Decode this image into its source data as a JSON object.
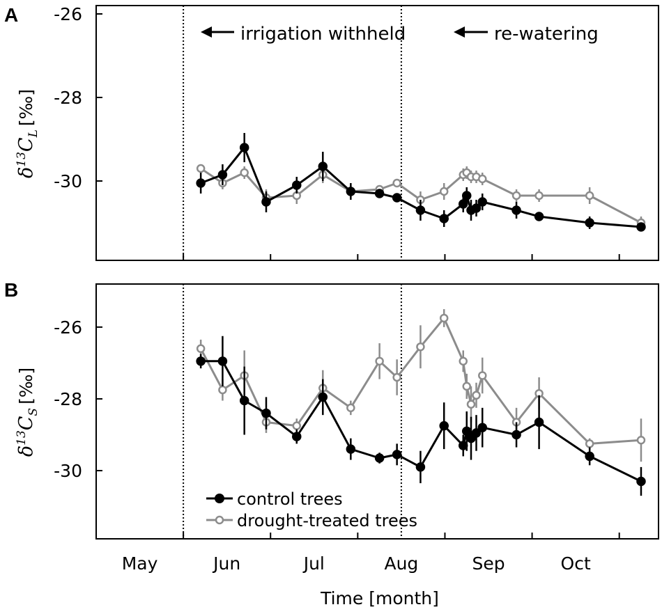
{
  "chart_data": [
    {
      "panel": "A",
      "type": "line",
      "ylabel_symbol": "δ",
      "ylabel_iso": "13",
      "ylabel_var": "C",
      "ylabel_sub": "L",
      "ylabel_unit": "[‰]",
      "ylim": [
        -31.9,
        -25.8
      ],
      "yticks": [
        -26,
        -28,
        -30
      ],
      "ytick_labels": [
        "-26",
        "-28",
        "-30"
      ],
      "annotations": [
        {
          "text": "irrigation withheld",
          "x": 5.0
        },
        {
          "text": "re-watering",
          "x": 7.5
        }
      ],
      "series": [
        {
          "name": "control trees",
          "color": "#000000",
          "marker": "filled",
          "x": [
            5.2,
            5.45,
            5.7,
            5.95,
            6.3,
            6.6,
            6.92,
            7.25,
            7.45,
            7.72,
            7.99,
            8.21,
            8.25,
            8.3,
            8.36,
            8.43,
            8.82,
            9.08,
            9.66,
            10.25
          ],
          "y": [
            -30.05,
            -29.85,
            -29.2,
            -30.5,
            -30.1,
            -29.65,
            -30.25,
            -30.3,
            -30.4,
            -30.7,
            -30.9,
            -30.55,
            -30.35,
            -30.7,
            -30.65,
            -30.5,
            -30.7,
            -30.85,
            -31.0,
            -31.1
          ],
          "err": [
            0.25,
            0.25,
            0.35,
            0.25,
            0.2,
            0.35,
            0.2,
            0.1,
            0.1,
            0.25,
            0.2,
            0.2,
            0.2,
            0.25,
            0.2,
            0.2,
            0.2,
            0.1,
            0.15,
            0.1
          ]
        },
        {
          "name": "drought-treated trees",
          "color": "#8c8c8c",
          "marker": "open",
          "x": [
            5.2,
            5.45,
            5.7,
            5.95,
            6.3,
            6.6,
            6.92,
            7.25,
            7.45,
            7.72,
            7.99,
            8.21,
            8.25,
            8.3,
            8.36,
            8.43,
            8.82,
            9.08,
            9.66,
            10.25
          ],
          "y": [
            -29.7,
            -30.05,
            -29.8,
            -30.4,
            -30.35,
            -29.85,
            -30.25,
            -30.2,
            -30.05,
            -30.45,
            -30.25,
            -29.85,
            -29.8,
            -29.9,
            -29.9,
            -29.95,
            -30.35,
            -30.35,
            -30.35,
            -31.0
          ],
          "err": [
            0.1,
            0.15,
            0.15,
            0.2,
            0.2,
            0.2,
            0.15,
            0.1,
            0.1,
            0.2,
            0.2,
            0.15,
            0.15,
            0.15,
            0.15,
            0.15,
            0.15,
            0.15,
            0.2,
            0.15
          ]
        }
      ]
    },
    {
      "panel": "B",
      "type": "line",
      "ylabel_symbol": "δ",
      "ylabel_iso": "13",
      "ylabel_var": "C",
      "ylabel_sub": "S",
      "ylabel_unit": "[‰]",
      "ylim": [
        -31.9,
        -24.8
      ],
      "yticks": [
        -26,
        -28,
        -30
      ],
      "ytick_labels": [
        "-26",
        "-28",
        "-30"
      ],
      "series": [
        {
          "name": "control trees",
          "color": "#000000",
          "marker": "filled",
          "x": [
            5.2,
            5.45,
            5.7,
            5.95,
            6.3,
            6.6,
            6.92,
            7.25,
            7.45,
            7.72,
            7.99,
            8.21,
            8.25,
            8.3,
            8.36,
            8.43,
            8.82,
            9.08,
            9.66,
            10.25
          ],
          "y": [
            -26.95,
            -26.95,
            -28.05,
            -28.4,
            -29.05,
            -27.95,
            -29.4,
            -29.65,
            -29.55,
            -29.9,
            -28.75,
            -29.3,
            -28.9,
            -29.1,
            -28.95,
            -28.8,
            -29.0,
            -28.65,
            -29.6,
            -30.3
          ],
          "err": [
            0.2,
            0.7,
            0.95,
            0.45,
            0.2,
            0.5,
            0.3,
            0.15,
            0.3,
            0.45,
            0.65,
            0.3,
            0.55,
            0.6,
            0.5,
            0.55,
            0.35,
            0.75,
            0.25,
            0.4
          ]
        },
        {
          "name": "drought-treated trees",
          "color": "#8c8c8c",
          "marker": "open",
          "x": [
            5.2,
            5.45,
            5.7,
            5.95,
            6.3,
            6.6,
            6.92,
            7.25,
            7.45,
            7.72,
            7.99,
            8.21,
            8.25,
            8.3,
            8.36,
            8.43,
            8.82,
            9.08,
            9.66,
            10.25
          ],
          "y": [
            -26.6,
            -27.75,
            -27.35,
            -28.65,
            -28.75,
            -27.7,
            -28.25,
            -26.95,
            -27.4,
            -26.55,
            -25.75,
            -26.95,
            -27.65,
            -28.15,
            -27.9,
            -27.35,
            -28.65,
            -27.85,
            -29.25,
            -29.15
          ],
          "err": [
            0.25,
            0.3,
            0.7,
            0.3,
            0.2,
            0.5,
            0.2,
            0.5,
            0.5,
            0.6,
            0.25,
            0.3,
            0.35,
            0.5,
            0.35,
            0.5,
            0.4,
            0.45,
            0.15,
            0.6
          ]
        }
      ]
    }
  ],
  "x_axis": {
    "xlim": [
      4.0,
      10.45
    ],
    "xlabel": "Time [month]",
    "ticks": [
      {
        "label": "May",
        "x": 4.5
      },
      {
        "label": "Jun",
        "x": 5.5
      },
      {
        "label": "Jul",
        "x": 6.5
      },
      {
        "label": "Aug",
        "x": 7.5
      },
      {
        "label": "Sep",
        "x": 8.5
      },
      {
        "label": "Oct",
        "x": 9.5
      }
    ],
    "minor_ticks": [
      5.0,
      6.0,
      7.0,
      8.0,
      9.0,
      10.0
    ]
  },
  "events": [
    {
      "name": "irrigation withheld",
      "x": 5.0
    },
    {
      "name": "re-watering",
      "x": 7.5
    }
  ],
  "legend": {
    "placement": "bottom-left",
    "entries": [
      "control trees",
      "drought-treated trees"
    ]
  }
}
